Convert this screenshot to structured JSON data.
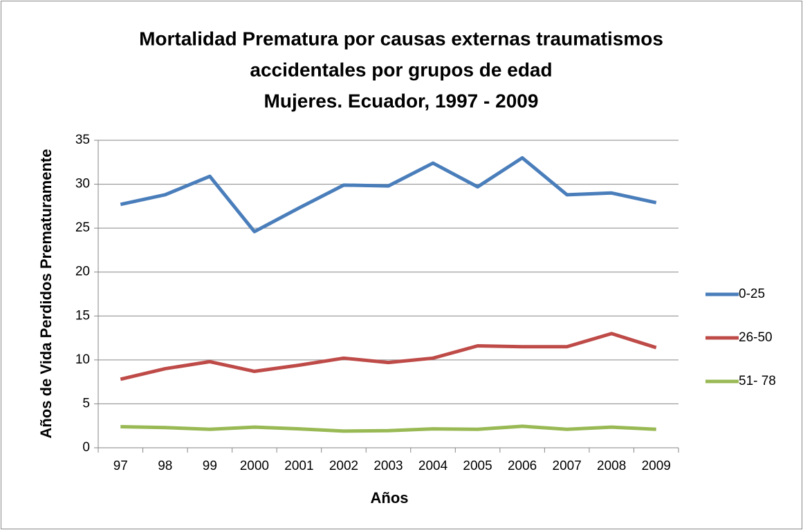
{
  "chart_data": {
    "type": "line",
    "title": [
      "Mortalidad Prematura por causas externas traumatismos",
      "accidentales por grupos de edad",
      "Mujeres. Ecuador, 1997 - 2009"
    ],
    "x_label": "Años",
    "y_label": "Años de Vida Perdidos Prematuramente",
    "categories": [
      "97",
      "98",
      "99",
      "2000",
      "2001",
      "2002",
      "2003",
      "2004",
      "2005",
      "2006",
      "2007",
      "2008",
      "2009"
    ],
    "series": [
      {
        "name": "0-25",
        "color": "#4a7ebb",
        "values": [
          27.7,
          28.8,
          30.9,
          24.6,
          27.3,
          29.9,
          29.8,
          32.4,
          29.7,
          33.0,
          28.8,
          29.0,
          27.9
        ]
      },
      {
        "name": "26-50",
        "color": "#be4b48",
        "values": [
          7.8,
          9.0,
          9.8,
          8.7,
          9.4,
          10.2,
          9.7,
          10.2,
          11.6,
          11.5,
          11.5,
          13.0,
          11.4
        ]
      },
      {
        "name": "51- 78",
        "color": "#98b954",
        "values": [
          2.4,
          2.3,
          2.1,
          2.35,
          2.15,
          1.9,
          1.95,
          2.15,
          2.1,
          2.45,
          2.1,
          2.35,
          2.1
        ]
      }
    ],
    "ylim": [
      0,
      35
    ],
    "yticks": [
      0,
      5,
      10,
      15,
      20,
      25,
      30,
      35
    ],
    "grid": true,
    "legend": "right"
  }
}
